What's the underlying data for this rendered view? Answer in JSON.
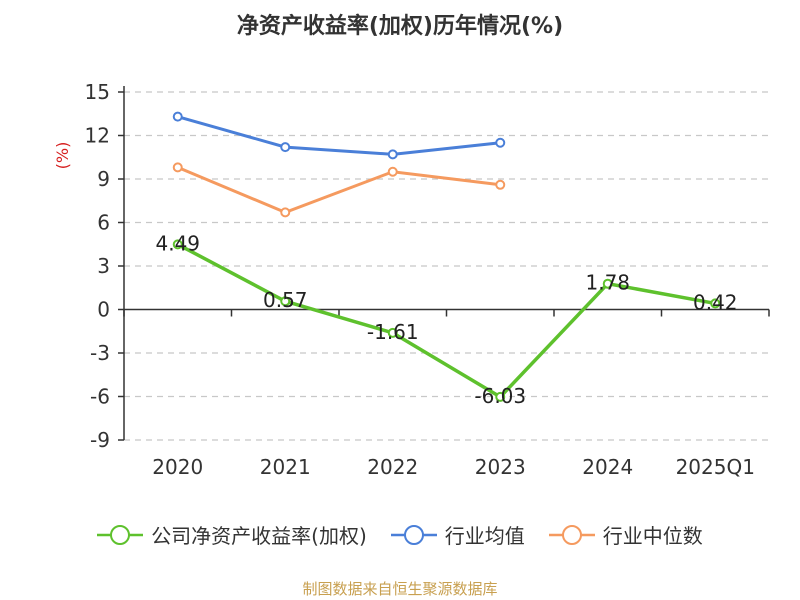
{
  "title": "净资产收益率(加权)历年情况(%)",
  "source_note": "制图数据来自恒生聚源数据库",
  "chart_data": {
    "type": "line",
    "title": "净资产收益率(加权)历年情况(%)",
    "ylabel": "(%)",
    "ylim": [
      -9,
      15
    ],
    "yticks": [
      -9,
      -6,
      -3,
      0,
      3,
      6,
      9,
      12,
      15
    ],
    "categories": [
      "2020",
      "2021",
      "2022",
      "2023",
      "2024",
      "2025Q1"
    ],
    "grid": true,
    "legend_position": "bottom",
    "series": [
      {
        "name": "公司净资产收益率(加权)",
        "color": "#5ec12d",
        "values": [
          4.49,
          0.57,
          -1.61,
          -6.03,
          1.78,
          0.42
        ],
        "labels": [
          "4.49",
          "0.57",
          "-1.61",
          "-6.03",
          "1.78",
          "0.42"
        ]
      },
      {
        "name": "行业均值",
        "color": "#4a7fd8",
        "values": [
          13.3,
          11.2,
          10.7,
          11.5,
          null,
          null
        ]
      },
      {
        "name": "行业中位数",
        "color": "#f59a5f",
        "values": [
          9.8,
          6.7,
          9.5,
          8.6,
          null,
          null
        ]
      }
    ]
  }
}
